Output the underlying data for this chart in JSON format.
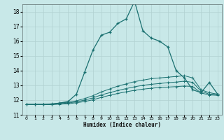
{
  "title": "",
  "xlabel": "Humidex (Indice chaleur)",
  "ylabel": "",
  "xlim": [
    -0.5,
    23.5
  ],
  "ylim": [
    11,
    18.5
  ],
  "background_color": "#c8e8e8",
  "grid_color": "#b0d0d0",
  "line_color": "#1a7070",
  "x_ticks": [
    0,
    1,
    2,
    3,
    4,
    5,
    6,
    7,
    8,
    9,
    10,
    11,
    12,
    13,
    14,
    15,
    16,
    17,
    18,
    19,
    20,
    21,
    22,
    23
  ],
  "y_ticks": [
    11,
    12,
    13,
    14,
    15,
    16,
    17,
    18
  ],
  "series1_x": [
    0,
    1,
    2,
    3,
    4,
    5,
    6,
    7,
    8,
    9,
    10,
    11,
    12,
    13,
    14,
    15,
    16,
    17,
    18,
    19,
    20,
    21,
    22,
    23
  ],
  "series1_y": [
    11.7,
    11.7,
    11.7,
    11.7,
    11.8,
    11.9,
    12.4,
    13.9,
    15.4,
    16.4,
    16.6,
    17.2,
    17.5,
    18.7,
    16.7,
    16.2,
    16.0,
    15.6,
    14.0,
    13.5,
    12.7,
    12.5,
    13.2,
    12.4
  ],
  "series2_x": [
    0,
    1,
    2,
    3,
    4,
    5,
    6,
    7,
    8,
    9,
    10,
    11,
    12,
    13,
    14,
    15,
    16,
    17,
    18,
    19,
    20,
    21,
    22,
    23
  ],
  "series2_y": [
    11.7,
    11.7,
    11.7,
    11.75,
    11.8,
    11.85,
    11.95,
    12.1,
    12.3,
    12.55,
    12.75,
    12.95,
    13.1,
    13.25,
    13.35,
    13.45,
    13.5,
    13.55,
    13.6,
    13.65,
    13.5,
    12.7,
    12.5,
    12.4
  ],
  "series3_x": [
    0,
    1,
    2,
    3,
    4,
    5,
    6,
    7,
    8,
    9,
    10,
    11,
    12,
    13,
    14,
    15,
    16,
    17,
    18,
    19,
    20,
    21,
    22,
    23
  ],
  "series3_y": [
    11.7,
    11.7,
    11.7,
    11.7,
    11.75,
    11.8,
    11.88,
    12.0,
    12.15,
    12.35,
    12.5,
    12.65,
    12.78,
    12.9,
    13.0,
    13.07,
    13.12,
    13.18,
    13.22,
    13.28,
    13.2,
    12.6,
    12.4,
    12.38
  ],
  "series4_x": [
    0,
    1,
    2,
    3,
    4,
    5,
    6,
    7,
    8,
    9,
    10,
    11,
    12,
    13,
    14,
    15,
    16,
    17,
    18,
    19,
    20,
    21,
    22,
    23
  ],
  "series4_y": [
    11.7,
    11.7,
    11.7,
    11.7,
    11.72,
    11.75,
    11.82,
    11.9,
    12.02,
    12.18,
    12.32,
    12.45,
    12.56,
    12.66,
    12.74,
    12.8,
    12.85,
    12.88,
    12.91,
    12.95,
    12.92,
    12.48,
    12.35,
    12.32
  ]
}
